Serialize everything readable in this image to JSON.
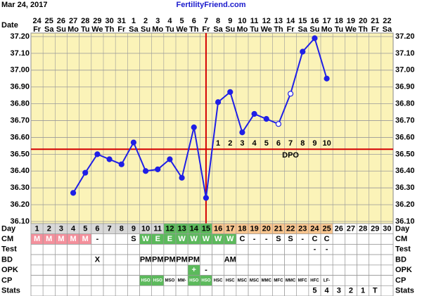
{
  "header": {
    "date": "Mar 24, 2017",
    "site": "FertilityFriend.com"
  },
  "chart_data": {
    "type": "line",
    "x_label": "Date",
    "categories": [
      "24",
      "25",
      "26",
      "27",
      "28",
      "29",
      "30",
      "31",
      "1",
      "2",
      "3",
      "4",
      "5",
      "6",
      "7",
      "8",
      "9",
      "10",
      "11",
      "12",
      "13",
      "14",
      "15",
      "16",
      "17",
      "18",
      "19",
      "20",
      "21",
      "22"
    ],
    "weekdays": [
      "Fr",
      "Sa",
      "Su",
      "Mo",
      "Tu",
      "We",
      "Th",
      "Fr",
      "Sa",
      "Su",
      "Mo",
      "Tu",
      "We",
      "Th",
      "Fr",
      "Sa",
      "Su",
      "Mo",
      "Tu",
      "We",
      "Th",
      "Fr",
      "Sa",
      "Su",
      "Mo",
      "Tu",
      "We",
      "Th",
      "Fr",
      "Sa"
    ],
    "series": [
      {
        "color": "#1f1fe6",
        "values": [
          null,
          null,
          null,
          36.27,
          36.39,
          36.5,
          36.47,
          36.44,
          36.57,
          36.4,
          36.41,
          36.47,
          36.36,
          36.66,
          36.24,
          36.81,
          36.87,
          36.63,
          36.74,
          36.71,
          36.68,
          36.86,
          37.11,
          37.19,
          36.95,
          null,
          null,
          null,
          null,
          null
        ]
      }
    ],
    "open_points": [
      20,
      21
    ],
    "ylim": [
      36.1,
      37.2
    ],
    "yticks": [
      {
        "value": 36.1,
        "label": "36.10"
      },
      {
        "value": 36.2,
        "label": "36.20"
      },
      {
        "value": 36.3,
        "label": "36.30"
      },
      {
        "value": 36.4,
        "label": "36.40"
      },
      {
        "value": 36.5,
        "label": "36.50"
      },
      {
        "value": 36.6,
        "label": "36.60"
      },
      {
        "value": 36.7,
        "label": "36.70"
      },
      {
        "value": 36.8,
        "label": "36.80"
      },
      {
        "value": 36.9,
        "label": "36.90"
      },
      {
        "value": 37.0,
        "label": "37.00"
      },
      {
        "value": 37.1,
        "label": "37.10"
      },
      {
        "value": 37.2,
        "label": "37.20"
      }
    ],
    "grid": true,
    "background": "#fbf3b8",
    "coverline": 36.53,
    "coverline_color": "#d40000",
    "ovulation_index": 14,
    "dpo": [
      null,
      null,
      null,
      null,
      null,
      null,
      null,
      null,
      null,
      null,
      null,
      null,
      null,
      null,
      null,
      "1",
      "2",
      "3",
      "4",
      "5",
      "6",
      "7",
      "8",
      "9",
      "10",
      null,
      null,
      null,
      null,
      null
    ],
    "dpo_label": "DPO"
  },
  "table": {
    "rows": [
      {
        "label": "Day",
        "cells": [
          "1",
          "2",
          "3",
          "4",
          "5",
          "6",
          "7",
          "8",
          "9",
          "10",
          "11",
          "12",
          "13",
          "14",
          "15",
          "16",
          "17",
          "18",
          "19",
          "20",
          "21",
          "22",
          "23",
          "24",
          "25",
          "26",
          "27",
          "28",
          "29",
          "30"
        ],
        "fills": [
          "#d8d8d8",
          "#d8d8d8",
          "#d8d8d8",
          "#d8d8d8",
          "#d8d8d8",
          "#d8d8d8",
          "#d8d8d8",
          "#d8d8d8",
          "#d8d8d8",
          "#d8d8d8",
          "#d8d8d8",
          "#5cba5c",
          "#5cba5c",
          "#5cba5c",
          "#5cba5c",
          "#f7c48e",
          "#f7c48e",
          "#f7c48e",
          "#f7c48e",
          "#f7c48e",
          "#f7c48e",
          "#f7c48e",
          "#f7c48e",
          "#f7c48e",
          "#f7c48e",
          null,
          null,
          null,
          null,
          null
        ]
      },
      {
        "label": "CM",
        "cells": [
          "M",
          "M",
          "M",
          "M",
          "M",
          "-",
          null,
          null,
          "S",
          "W",
          "E",
          "E",
          "W",
          "W",
          "W",
          "W",
          "W",
          "C",
          "-",
          "-",
          "S",
          "S",
          "-",
          "C",
          "C",
          null,
          null,
          null,
          null,
          null
        ],
        "fills": [
          "#f4909c",
          "#f4909c",
          "#f4909c",
          "#f4909c",
          "#f4909c",
          null,
          null,
          null,
          null,
          "#5cba5c",
          "#5cba5c",
          "#5cba5c",
          "#5cba5c",
          "#5cba5c",
          "#5cba5c",
          "#5cba5c",
          "#5cba5c",
          null,
          null,
          null,
          null,
          null,
          null,
          null,
          null,
          null,
          null,
          null,
          null,
          null
        ]
      },
      {
        "label": "Test",
        "cells": [
          null,
          null,
          null,
          null,
          null,
          null,
          null,
          null,
          null,
          null,
          null,
          null,
          null,
          null,
          null,
          null,
          null,
          null,
          null,
          null,
          null,
          null,
          null,
          "-",
          "-",
          null,
          null,
          null,
          null,
          null
        ]
      },
      {
        "label": "BD",
        "cells": [
          null,
          null,
          null,
          null,
          null,
          "X",
          null,
          null,
          null,
          "PM",
          "PM",
          "PM",
          "PM",
          "PM",
          null,
          null,
          "AM",
          null,
          null,
          null,
          null,
          null,
          null,
          null,
          null,
          null,
          null,
          null,
          null,
          null
        ]
      },
      {
        "label": "OPK",
        "cells": [
          null,
          null,
          null,
          null,
          null,
          null,
          null,
          null,
          null,
          null,
          null,
          null,
          null,
          "+",
          "-",
          null,
          null,
          null,
          null,
          null,
          null,
          null,
          null,
          null,
          null,
          null,
          null,
          null,
          null,
          null
        ],
        "fills": [
          null,
          null,
          null,
          null,
          null,
          null,
          null,
          null,
          null,
          null,
          null,
          null,
          null,
          "#5cba5c",
          null,
          null,
          null,
          null,
          null,
          null,
          null,
          null,
          null,
          null,
          null,
          null,
          null,
          null,
          null,
          null
        ]
      },
      {
        "label": "CP",
        "cells": [
          null,
          null,
          null,
          null,
          null,
          null,
          null,
          null,
          null,
          "HSO",
          "HSO",
          "MSO",
          "MM-",
          "HSO",
          "HSO",
          "HSC",
          "HSC",
          "MSC",
          "MSC",
          "MMC",
          "MFC",
          "MMC",
          "MFC",
          "HFC",
          "LF-",
          null,
          null,
          null,
          null,
          null
        ],
        "fills": [
          null,
          null,
          null,
          null,
          null,
          null,
          null,
          null,
          null,
          "#5cba5c",
          "#5cba5c",
          null,
          null,
          "#5cba5c",
          "#5cba5c",
          null,
          null,
          null,
          null,
          null,
          null,
          null,
          null,
          null,
          null,
          null,
          null,
          null,
          null,
          null
        ]
      },
      {
        "label": "Stats",
        "cells": [
          null,
          null,
          null,
          null,
          null,
          null,
          null,
          null,
          null,
          null,
          null,
          null,
          null,
          null,
          null,
          null,
          null,
          null,
          null,
          null,
          null,
          null,
          null,
          "5",
          "4",
          "3",
          "2",
          "1",
          "T",
          null
        ]
      }
    ]
  }
}
